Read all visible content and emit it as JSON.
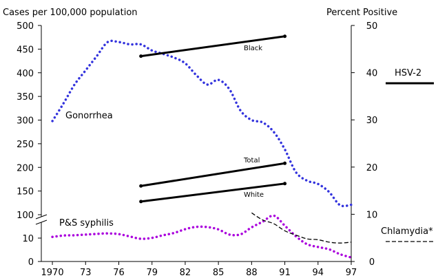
{
  "chart_data": {
    "type": "line",
    "left_axis": {
      "title": "Cases per 100,000 population",
      "tick_labels_upper": [
        "100",
        "150",
        "200",
        "250",
        "300",
        "350",
        "400",
        "450",
        "500"
      ],
      "tick_labels_lower": [
        "0",
        "10"
      ],
      "axis_break": true
    },
    "right_axis": {
      "title": "Percent Positive",
      "ylim": [
        0,
        50
      ],
      "tick_labels": [
        "0",
        "10",
        "20",
        "30",
        "40",
        "50"
      ]
    },
    "x_axis": {
      "xlim": [
        1969,
        1997
      ],
      "tick_years": [
        1970,
        1973,
        1976,
        1979,
        1982,
        1985,
        1988,
        1991,
        1994,
        1997
      ],
      "tick_labels": [
        "1970",
        "73",
        "76",
        "79",
        "82",
        "85",
        "88",
        "91",
        "94",
        "97"
      ]
    },
    "series": [
      {
        "name": "Gonorrhea",
        "axis": "left",
        "style": "dotted",
        "color": "#3333dd",
        "x": [
          1970,
          1971,
          1972,
          1973,
          1974,
          1975,
          1976,
          1977,
          1978,
          1979,
          1980,
          1981,
          1982,
          1983,
          1984,
          1985,
          1986,
          1987,
          1988,
          1989,
          1990,
          1991,
          1992,
          1993,
          1994,
          1995,
          1996,
          1997
        ],
        "y": [
          298,
          335,
          375,
          405,
          435,
          465,
          465,
          460,
          460,
          447,
          440,
          432,
          420,
          395,
          375,
          385,
          365,
          320,
          300,
          295,
          275,
          238,
          190,
          172,
          165,
          148,
          120,
          121
        ]
      },
      {
        "name": "P&S syphilis",
        "axis": "left",
        "style": "dotted",
        "color": "#aa00dd",
        "x": [
          1970,
          1971,
          1972,
          1973,
          1974,
          1975,
          1976,
          1977,
          1978,
          1979,
          1980,
          1981,
          1982,
          1983,
          1984,
          1985,
          1986,
          1987,
          1988,
          1989,
          1990,
          1991,
          1992,
          1993,
          1994,
          1995,
          1996,
          1997
        ],
        "y": [
          10.5,
          11.1,
          11.2,
          11.5,
          11.8,
          12.0,
          11.7,
          10.7,
          9.7,
          10.1,
          11.2,
          12.2,
          13.8,
          14.8,
          14.7,
          13.7,
          11.5,
          11.6,
          14.6,
          17.0,
          19.6,
          15.3,
          10.8,
          7.4,
          6.2,
          5.2,
          3.1,
          1.7
        ]
      },
      {
        "name": "Chlamydia*",
        "axis": "right",
        "style": "dashed",
        "color": "#000000",
        "x": [
          1988,
          1989,
          1990,
          1991,
          1992,
          1993,
          1994,
          1995,
          1996,
          1997
        ],
        "y": [
          10.3,
          8.8,
          8.0,
          6.5,
          5.6,
          4.8,
          4.6,
          4.1,
          3.9,
          4.1
        ]
      },
      {
        "name": "HSV-2",
        "axis": "right",
        "style": "solid",
        "color": "#000000",
        "subseries": [
          {
            "label": "Black",
            "x": [
              1978,
              1991
            ],
            "y": [
              43.5,
              47.7
            ]
          },
          {
            "label": "Total",
            "x": [
              1978,
              1991
            ],
            "y": [
              16.0,
              20.8
            ]
          },
          {
            "label": "White",
            "x": [
              1978,
              1991
            ],
            "y": [
              12.7,
              16.5
            ]
          }
        ]
      }
    ],
    "legend": {
      "placement": "right",
      "items": [
        {
          "label": "HSV-2",
          "style": "solid"
        },
        {
          "label": "Chlamydia*",
          "style": "dashed"
        }
      ]
    },
    "grid": false
  }
}
